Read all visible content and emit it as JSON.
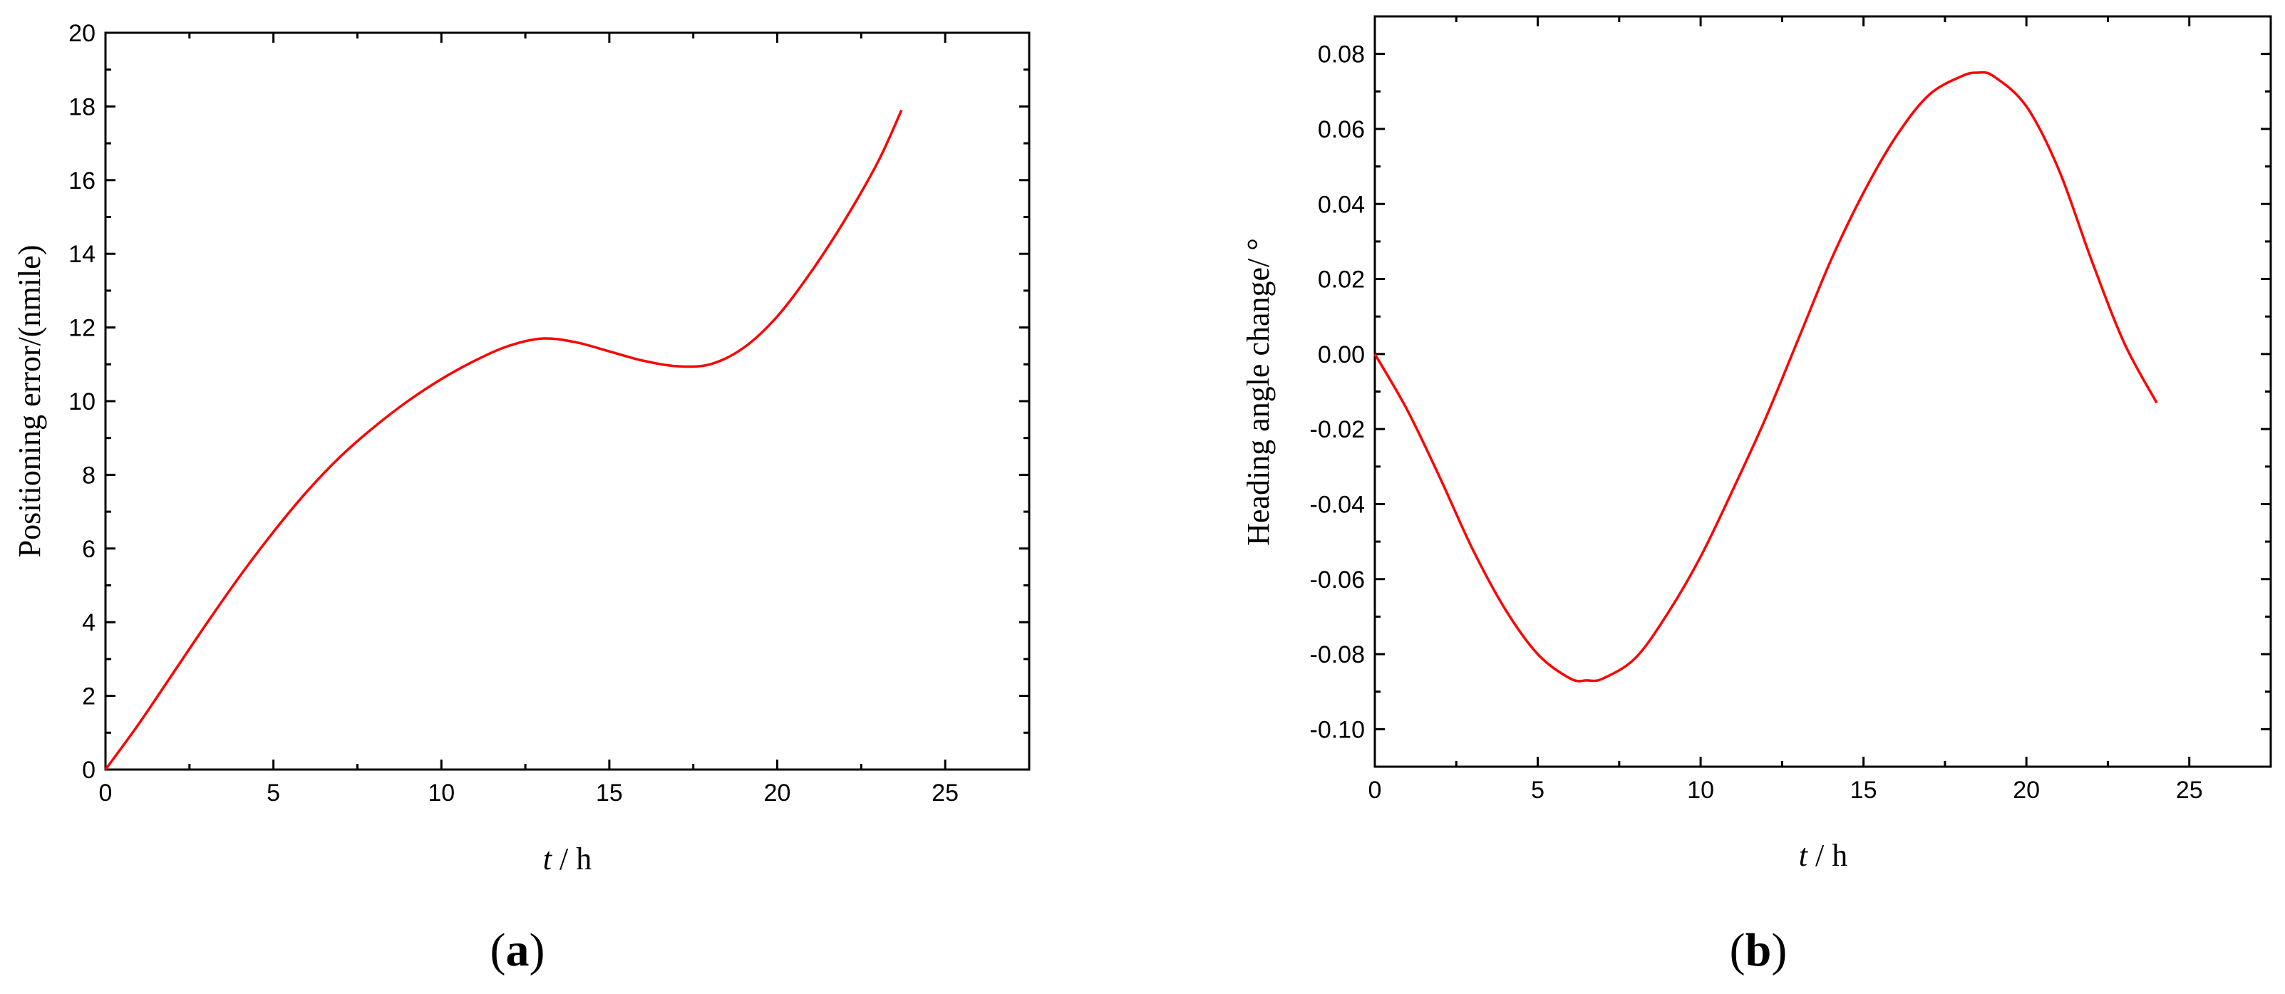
{
  "chart_data": [
    {
      "type": "line",
      "panel_label": {
        "open": "(",
        "letter": "a",
        "close": ")"
      },
      "xlabel": {
        "var": "t",
        "rest": " / h"
      },
      "ylabel": "Positioning error/(nmile)",
      "xlim": [
        0,
        27.5
      ],
      "ylim": [
        0,
        20
      ],
      "xticks": [
        0,
        5,
        10,
        15,
        20,
        25
      ],
      "xtick_labels": [
        "0",
        "5",
        "10",
        "15",
        "20",
        "25"
      ],
      "yticks": [
        0,
        2,
        4,
        6,
        8,
        10,
        12,
        14,
        16,
        18,
        20
      ],
      "ytick_labels": [
        "0",
        "2",
        "4",
        "6",
        "8",
        "10",
        "12",
        "14",
        "16",
        "18",
        "20"
      ],
      "grid": false,
      "color": "#ff0000",
      "series": [
        {
          "x": [
            0,
            1,
            2,
            3,
            4,
            5,
            6,
            7,
            8,
            9,
            10,
            11,
            12,
            13,
            14,
            15,
            16,
            17,
            18,
            19,
            20,
            21,
            22,
            23,
            23.7
          ],
          "y": [
            0,
            1.25,
            2.6,
            3.95,
            5.25,
            6.45,
            7.55,
            8.5,
            9.3,
            10.0,
            10.6,
            11.1,
            11.5,
            11.7,
            11.6,
            11.35,
            11.1,
            10.95,
            11.0,
            11.45,
            12.3,
            13.5,
            14.9,
            16.5,
            17.9
          ]
        }
      ]
    },
    {
      "type": "line",
      "panel_label": {
        "open": "(",
        "letter": "b",
        "close": ")"
      },
      "xlabel": {
        "var": "t",
        "rest": " / h"
      },
      "ylabel": "Heading angle change/ °",
      "xlim": [
        0,
        27.5
      ],
      "ylim": [
        -0.11,
        0.09
      ],
      "xticks": [
        0,
        5,
        10,
        15,
        20,
        25
      ],
      "xtick_labels": [
        "0",
        "5",
        "10",
        "15",
        "20",
        "25"
      ],
      "yticks": [
        -0.1,
        -0.08,
        -0.06,
        -0.04,
        -0.02,
        0.0,
        0.02,
        0.04,
        0.06,
        0.08
      ],
      "ytick_labels": [
        "-0.10",
        "-0.08",
        "-0.06",
        "-0.04",
        "-0.02",
        "0.00",
        "0.02",
        "0.04",
        "0.06",
        "0.08"
      ],
      "grid": false,
      "color": "#ff0000",
      "series": [
        {
          "x": [
            0,
            1,
            2,
            3,
            4,
            5,
            6,
            6.5,
            7,
            8,
            9,
            10,
            11,
            12,
            13,
            14,
            15,
            16,
            17,
            18,
            18.5,
            19,
            20,
            21,
            22,
            23,
            24
          ],
          "y": [
            0,
            -0.015,
            -0.033,
            -0.052,
            -0.068,
            -0.08,
            -0.0865,
            -0.087,
            -0.0865,
            -0.081,
            -0.069,
            -0.054,
            -0.036,
            -0.017,
            0.004,
            0.025,
            0.043,
            0.058,
            0.069,
            0.074,
            0.075,
            0.074,
            0.066,
            0.049,
            0.025,
            0.003,
            -0.013
          ]
        }
      ]
    }
  ]
}
